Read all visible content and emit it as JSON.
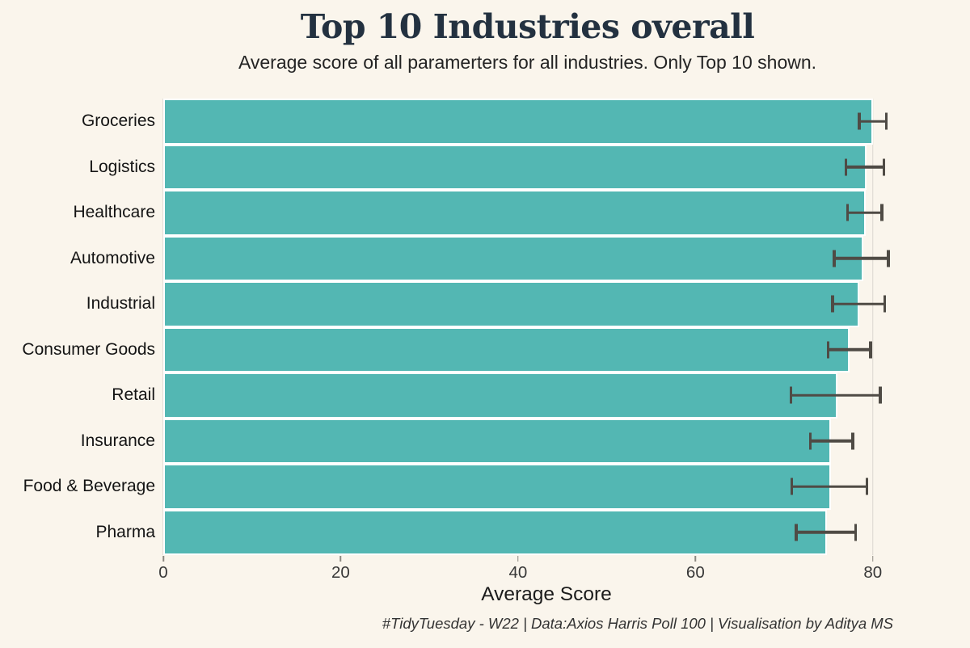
{
  "chart_data": {
    "type": "bar",
    "orientation": "horizontal",
    "title": "Top 10 Industries overall",
    "subtitle": "Average score of all paramerters for all industries. Only Top 10 shown.",
    "xlabel": "Average Score",
    "caption": "#TidyTuesday - W22 | Data:Axios Harris Poll 100 | Visualisation by Aditya MS",
    "categories": [
      "Groceries",
      "Logistics",
      "Healthcare",
      "Automotive",
      "Industrial",
      "Consumer Goods",
      "Retail",
      "Insurance",
      "Food & Beverage",
      "Pharma"
    ],
    "values": [
      80.0,
      79.3,
      79.2,
      78.9,
      78.5,
      77.4,
      76.0,
      75.3,
      75.3,
      74.8
    ],
    "error_low": [
      78.3,
      76.8,
      77.0,
      75.5,
      75.3,
      74.8,
      70.6,
      72.8,
      70.7,
      71.2
    ],
    "error_high": [
      81.7,
      81.4,
      81.2,
      81.9,
      81.5,
      79.9,
      81.0,
      77.9,
      79.5,
      78.2
    ],
    "x_ticks": [
      0,
      20,
      40,
      60,
      80
    ],
    "xlim": [
      0,
      86.4
    ],
    "grid": "vertical-major-only",
    "legend": "none",
    "error_bars": true
  },
  "theme": {
    "background": "#FAF5EC",
    "bar_color": "#53B7B3",
    "bar_stroke": "#FFFFFF",
    "error_color": "#4F4B45",
    "grid_color": "#DBD7D0",
    "tick_color": "#8D8982",
    "title_color": "#233140",
    "subtitle_color": "#242424",
    "label_color": "#141414",
    "tick_text_color": "#383838",
    "axis_title_color": "#1B1B1B",
    "caption_color": "#333333"
  }
}
